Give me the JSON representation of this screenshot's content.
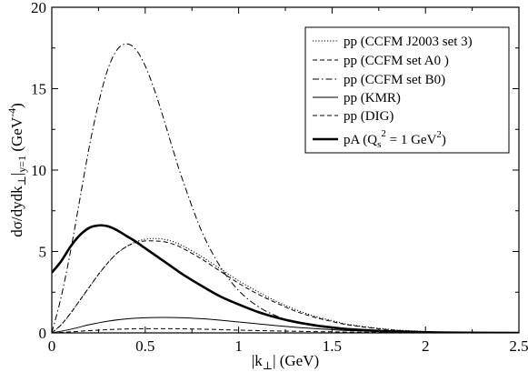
{
  "chart_data": {
    "type": "line",
    "xlabel": "|k⊥| (GeV)",
    "ylabel": "dσ/dydk⊥|y=1 (GeV⁻⁴)",
    "xlim": [
      0,
      2.5
    ],
    "ylim": [
      0,
      20
    ],
    "xticks": [
      "0",
      "0.5",
      "1",
      "1.5",
      "2",
      "2.5"
    ],
    "yticks": [
      "0",
      "5",
      "10",
      "15",
      "20"
    ],
    "xtick_values": [
      0,
      0.5,
      1,
      1.5,
      2,
      2.5
    ],
    "ytick_values": [
      0,
      5,
      10,
      15,
      20
    ],
    "grid": false,
    "legend_position": "top-right",
    "series": [
      {
        "name": "pp (CCFM J2003 set 3)",
        "style": "dotted",
        "weight": "thin",
        "color": "#000000",
        "x": [
          0,
          0.05,
          0.1,
          0.15,
          0.2,
          0.25,
          0.3,
          0.35,
          0.4,
          0.45,
          0.5,
          0.55,
          0.6,
          0.65,
          0.7,
          0.8,
          0.9,
          1.0,
          1.1,
          1.2,
          1.3,
          1.4,
          1.5,
          1.6,
          1.8,
          2.0,
          2.2,
          2.5
        ],
        "y": [
          0,
          0.5,
          1.2,
          2.0,
          2.8,
          3.6,
          4.3,
          4.9,
          5.3,
          5.6,
          5.75,
          5.8,
          5.75,
          5.6,
          5.35,
          4.7,
          3.95,
          3.2,
          2.55,
          1.95,
          1.45,
          1.05,
          0.75,
          0.5,
          0.22,
          0.09,
          0.03,
          0.0
        ]
      },
      {
        "name": "pp (CCFM set A0 )",
        "style": "dashed",
        "weight": "thin",
        "color": "#000000",
        "x": [
          0,
          0.05,
          0.1,
          0.15,
          0.2,
          0.25,
          0.3,
          0.35,
          0.4,
          0.45,
          0.5,
          0.55,
          0.6,
          0.65,
          0.7,
          0.8,
          0.9,
          1.0,
          1.1,
          1.2,
          1.3,
          1.4,
          1.5,
          1.6,
          1.8,
          2.0,
          2.2,
          2.5
        ],
        "y": [
          0,
          0.5,
          1.2,
          2.0,
          2.8,
          3.6,
          4.3,
          4.9,
          5.3,
          5.55,
          5.65,
          5.65,
          5.6,
          5.45,
          5.2,
          4.55,
          3.8,
          3.05,
          2.4,
          1.85,
          1.35,
          0.98,
          0.7,
          0.47,
          0.2,
          0.08,
          0.03,
          0.0
        ]
      },
      {
        "name": "pp (CCFM set B0)",
        "style": "dashdot",
        "weight": "thin",
        "color": "#000000",
        "x": [
          0,
          0.05,
          0.1,
          0.15,
          0.2,
          0.25,
          0.3,
          0.35,
          0.4,
          0.45,
          0.5,
          0.55,
          0.6,
          0.65,
          0.7,
          0.8,
          0.9,
          1.0,
          1.1,
          1.2,
          1.3,
          1.4,
          1.5,
          1.6,
          1.8,
          2.0,
          2.2,
          2.5
        ],
        "y": [
          0,
          2.2,
          5.0,
          8.2,
          11.4,
          14.1,
          16.2,
          17.4,
          17.75,
          17.4,
          16.4,
          14.9,
          13.1,
          11.2,
          9.4,
          6.3,
          4.1,
          2.6,
          1.65,
          1.05,
          0.68,
          0.45,
          0.3,
          0.2,
          0.09,
          0.04,
          0.01,
          0.0
        ]
      },
      {
        "name": "pp (KMR)",
        "style": "solid",
        "weight": "thin",
        "color": "#000000",
        "x": [
          0,
          0.1,
          0.2,
          0.3,
          0.4,
          0.5,
          0.6,
          0.7,
          0.8,
          0.9,
          1.0,
          1.1,
          1.2,
          1.3,
          1.4,
          1.5,
          1.6,
          1.8,
          2.0,
          2.2,
          2.5
        ],
        "y": [
          0,
          0.22,
          0.5,
          0.72,
          0.86,
          0.93,
          0.95,
          0.93,
          0.87,
          0.78,
          0.67,
          0.56,
          0.45,
          0.35,
          0.27,
          0.2,
          0.14,
          0.07,
          0.03,
          0.01,
          0.0
        ]
      },
      {
        "name": "pp (DIG)",
        "style": "dashed",
        "weight": "thin",
        "color": "#000000",
        "x": [
          0,
          0.1,
          0.2,
          0.3,
          0.4,
          0.5,
          0.6,
          0.7,
          0.8,
          0.9,
          1.0,
          1.2,
          1.4,
          1.6,
          1.8,
          2.0,
          2.5
        ],
        "y": [
          0,
          0.06,
          0.14,
          0.2,
          0.24,
          0.26,
          0.26,
          0.25,
          0.23,
          0.2,
          0.17,
          0.12,
          0.08,
          0.05,
          0.03,
          0.02,
          0.0
        ]
      },
      {
        "name": "pA (Qs² = 1 GeV²)",
        "style": "solid",
        "weight": "thick",
        "color": "#000000",
        "x": [
          0,
          0.05,
          0.1,
          0.15,
          0.2,
          0.25,
          0.3,
          0.35,
          0.4,
          0.45,
          0.5,
          0.55,
          0.6,
          0.65,
          0.7,
          0.8,
          0.9,
          1.0,
          1.1,
          1.2,
          1.3,
          1.4,
          1.5,
          1.6,
          1.8,
          2.0,
          2.2,
          2.5
        ],
        "y": [
          3.7,
          4.4,
          5.3,
          6.0,
          6.45,
          6.6,
          6.55,
          6.3,
          5.95,
          5.6,
          5.2,
          4.8,
          4.4,
          4.0,
          3.6,
          2.9,
          2.25,
          1.75,
          1.3,
          0.95,
          0.68,
          0.48,
          0.33,
          0.22,
          0.1,
          0.04,
          0.01,
          0.0
        ]
      }
    ]
  },
  "legend": {
    "items": [
      {
        "prefix": "pp (CCFM J2003 set 3)"
      },
      {
        "prefix": "pp (CCFM set A0 )"
      },
      {
        "prefix": "pp (CCFM set B0)"
      },
      {
        "prefix": "pp (KMR)"
      },
      {
        "prefix": "pp (DIG)"
      },
      {
        "prefix": "pA (Q",
        "sub": "s",
        "sup": "2",
        "mid": " = 1 GeV",
        "sup2": "2",
        "suffix": ")"
      }
    ]
  },
  "axis_label_parts": {
    "x": {
      "pre": "|k",
      "sub": "⊥",
      "post": "| (GeV)"
    },
    "y": {
      "pre": "dσ/dydk",
      "sub1": "⊥",
      "mid": "|",
      "sub2": "y=1",
      "post1": " (GeV",
      "sup": "-4",
      "post2": ")"
    }
  }
}
